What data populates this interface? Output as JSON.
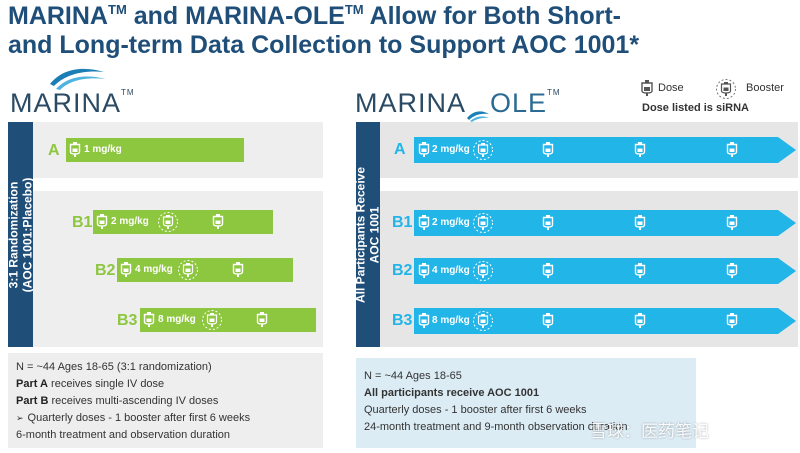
{
  "title": {
    "line1_a": "MARINA",
    "line1_tm1": "TM",
    "line1_b": " and MARINA-OLE",
    "line1_tm2": "TM",
    "line1_c": " Allow for Both Short-",
    "line2": "and Long-term Data Collection to Support AOC 1001*"
  },
  "marina_logo": {
    "word": "MARINA",
    "tm": "TM"
  },
  "ole_logo": {
    "word_a": "MARINA",
    "word_b": "OLE",
    "tm": "TM"
  },
  "legend": {
    "dose": "Dose",
    "booster": "Booster",
    "note": "Dose listed is siRNA"
  },
  "left_sidebar": {
    "line1": "3:1 Randomization",
    "line2": "(AOC 1001:Placebo)"
  },
  "right_sidebar": {
    "line1": "All Participants Receive",
    "line2": "AOC 1001"
  },
  "left_groups": [
    {
      "label": "A",
      "dose": "1 mg/kg"
    },
    {
      "label": "B1",
      "dose": "2 mg/kg"
    },
    {
      "label": "B2",
      "dose": "4 mg/kg"
    },
    {
      "label": "B3",
      "dose": "8 mg/kg"
    }
  ],
  "right_groups": [
    {
      "label": "A",
      "dose": "2 mg/kg"
    },
    {
      "label": "B1",
      "dose": "2 mg/kg"
    },
    {
      "label": "B2",
      "dose": "4 mg/kg"
    },
    {
      "label": "B3",
      "dose": "8 mg/kg"
    }
  ],
  "left_info": {
    "line1": "N = ~44 Ages 18-65 (3:1 randomization)",
    "line2_bold": "Part A",
    "line2_rest": " receives single IV dose",
    "line3_bold": "Part B",
    "line3_rest": " receives multi-ascending IV doses",
    "line4": "Quarterly doses - 1 booster after first 6 weeks",
    "line5": "6-month treatment and observation duration",
    "bullet": "➢"
  },
  "right_info": {
    "line1": "N = ~44 Ages 18-65",
    "line2": "All participants receive AOC 1001",
    "line3": "Quarterly doses - 1 booster after first 6 weeks",
    "line4": "24-month treatment and 9-month observation duration"
  },
  "watermark": "雪球：医药笔记",
  "colors": {
    "green": "#8dc63f",
    "blue": "#22b5e8",
    "navy": "#1f4e79",
    "panel": "#eeeeee",
    "lightblue": "#dcecf5"
  }
}
